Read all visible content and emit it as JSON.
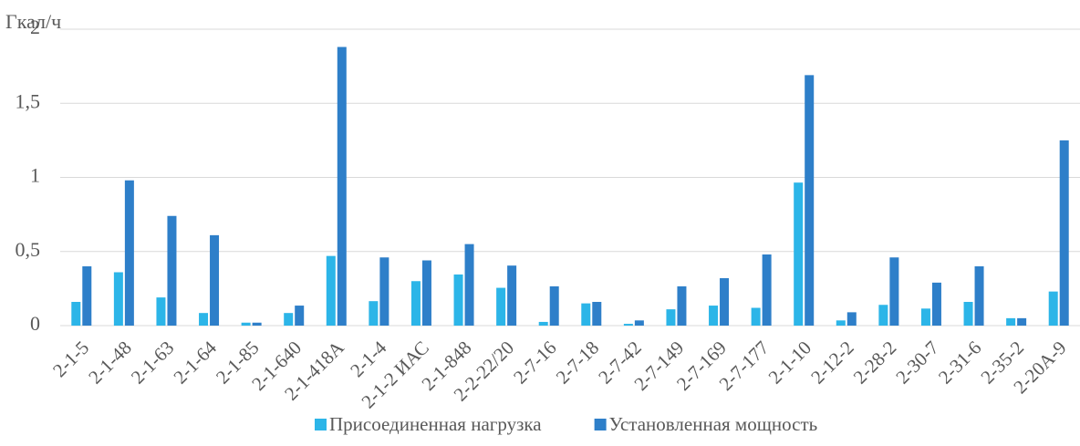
{
  "chart_data": {
    "type": "bar",
    "y_label": "Гкал/ч",
    "categories": [
      "2-1-5",
      "2-1-48",
      "2-1-63",
      "2-1-64",
      "2-1-85",
      "2-1-640",
      "2-1-418А",
      "2-1-4",
      "2-1-2 ИАС",
      "2-1-848",
      "2-2-22/20",
      "2-7-16",
      "2-7-18",
      "2-7-42",
      "2-7-149",
      "2-7-169",
      "2-7-177",
      "2-1-10",
      "2-12-2",
      "2-28-2",
      "2-30-7",
      "2-31-6",
      "2-35-2",
      "2-20А-9"
    ],
    "series": [
      {
        "name": "Присоединенная нагрузка",
        "color": "#2cb5e8",
        "values": [
          0.16,
          0.36,
          0.19,
          0.085,
          0.02,
          0.085,
          0.47,
          0.165,
          0.3,
          0.345,
          0.255,
          0.025,
          0.15,
          0.012,
          0.11,
          0.135,
          0.12,
          0.965,
          0.035,
          0.14,
          0.115,
          0.16,
          0.05,
          0.23
        ]
      },
      {
        "name": "Установленная мощность",
        "color": "#2e7fc9",
        "values": [
          0.4,
          0.98,
          0.74,
          0.61,
          0.02,
          0.135,
          1.88,
          0.46,
          0.44,
          0.55,
          0.405,
          0.265,
          0.16,
          0.035,
          0.265,
          0.32,
          0.48,
          1.69,
          0.09,
          0.46,
          0.29,
          0.4,
          0.05,
          1.25
        ]
      }
    ],
    "ylim": [
      0,
      2
    ],
    "yticks": [
      0,
      {
        "value": 0.5,
        "label": "0,5"
      },
      1,
      {
        "value": 1.5,
        "label": "1,5"
      },
      2
    ],
    "grid": true
  }
}
